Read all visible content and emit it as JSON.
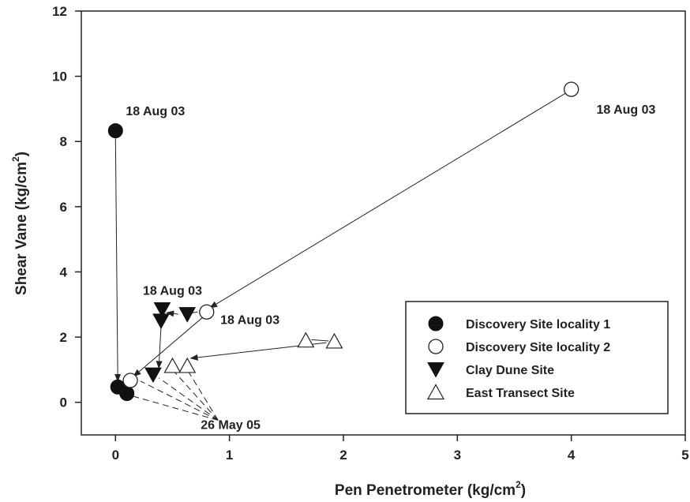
{
  "chart_data": {
    "type": "scatter",
    "xlabel": "Pen Penetrometer (kg/cm",
    "xlabel_sup": "2",
    "xlabel_end": ")",
    "ylabel": "Shear Vane (kg/cm",
    "ylabel_sup": "2",
    "ylabel_end": ")",
    "xlim": [
      -0.3,
      5
    ],
    "ylim": [
      -1,
      12
    ],
    "xticks": [
      0,
      1,
      2,
      3,
      4,
      5
    ],
    "yticks": [
      0,
      2,
      4,
      6,
      8,
      10,
      12
    ],
    "grid": false,
    "legend_position": "bottom-right",
    "series": [
      {
        "name": "Discovery Site locality 1",
        "marker": "filled-circle",
        "x": [
          0.0,
          0.02,
          0.1
        ],
        "y": [
          8.33,
          0.47,
          0.27
        ]
      },
      {
        "name": "Discovery Site locality 2",
        "marker": "open-circle",
        "x": [
          4.0,
          0.8,
          0.13
        ],
        "y": [
          9.6,
          2.77,
          0.67
        ]
      },
      {
        "name": "Clay Dune Site",
        "marker": "filled-triangle-down",
        "x": [
          0.41,
          0.4,
          0.63,
          0.33
        ],
        "y": [
          2.85,
          2.5,
          2.7,
          0.85
        ]
      },
      {
        "name": "East Transect Site",
        "marker": "open-triangle-up",
        "x": [
          1.67,
          1.92,
          0.5,
          0.63
        ],
        "y": [
          1.9,
          1.87,
          1.12,
          1.12
        ]
      }
    ],
    "annotations": [
      {
        "text": "18 Aug 03",
        "near": "Discovery Site locality 1 (0, 8.33)"
      },
      {
        "text": "18 Aug 03",
        "near": "Discovery Site locality 2 (4, 9.6)"
      },
      {
        "text": "18 Aug 03",
        "near": "Clay Dune Site"
      },
      {
        "text": "18 Aug 03",
        "near": "East Transect Site"
      },
      {
        "text": "26 May 05",
        "near": "late points"
      }
    ],
    "arrows": [
      {
        "from": [
          0.0,
          8.1
        ],
        "to": [
          0.02,
          0.65
        ]
      },
      {
        "from": [
          3.95,
          9.48
        ],
        "to": [
          0.83,
          2.9
        ]
      },
      {
        "from": [
          0.77,
          2.62
        ],
        "to": [
          0.16,
          0.8
        ]
      },
      {
        "from": [
          0.4,
          2.35
        ],
        "to": [
          0.38,
          1.05
        ]
      },
      {
        "from": [
          1.85,
          1.83
        ],
        "to": [
          0.66,
          1.35
        ]
      },
      {
        "from": [
          0.55,
          2.7
        ],
        "to": [
          0.45,
          2.75
        ]
      }
    ],
    "connectors": [
      {
        "from": [
          1.72,
          1.92
        ],
        "to": [
          1.87,
          1.88
        ]
      },
      {
        "from": [
          0.62,
          2.72
        ],
        "to": [
          0.72,
          2.77
        ]
      }
    ],
    "dashed_leaders": [
      {
        "from": [
          0.9,
          -0.55
        ],
        "to": [
          0.12,
          0.22
        ]
      },
      {
        "from": [
          0.9,
          -0.55
        ],
        "to": [
          0.22,
          0.65
        ]
      },
      {
        "from": [
          0.9,
          -0.55
        ],
        "to": [
          0.38,
          0.75
        ]
      },
      {
        "from": [
          0.9,
          -0.55
        ],
        "to": [
          0.5,
          1.0
        ]
      },
      {
        "from": [
          0.9,
          -0.55
        ],
        "to": [
          0.63,
          1.0
        ]
      }
    ]
  }
}
